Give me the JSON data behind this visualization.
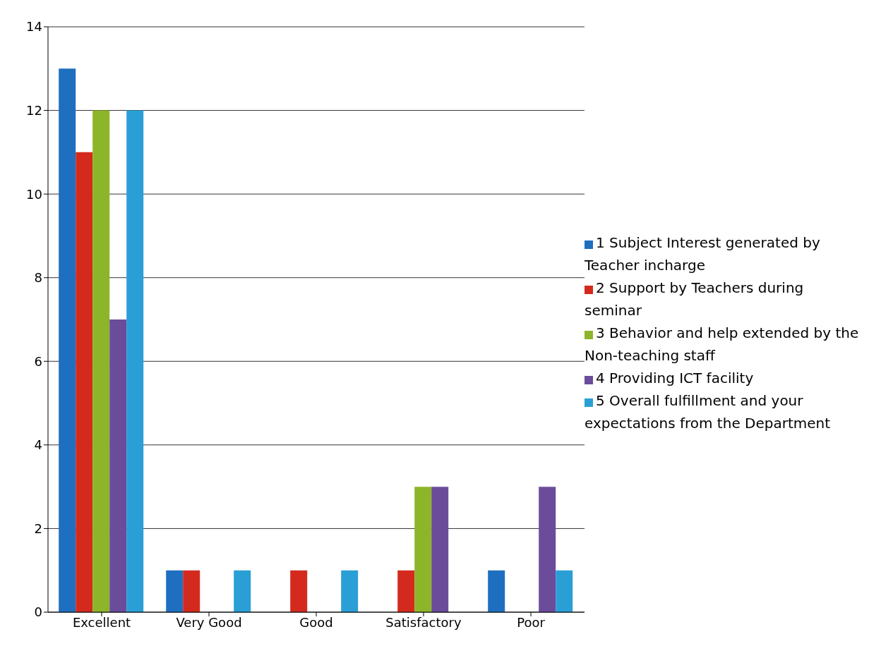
{
  "chart_data": {
    "type": "bar",
    "categories": [
      "Excellent",
      "Very Good",
      "Good",
      "Satisfactory",
      "Poor"
    ],
    "series": [
      {
        "name": "1  Subject Interest generated by Teacher incharge",
        "color": "#1f6fc0",
        "values": [
          13,
          1,
          0,
          0,
          1
        ]
      },
      {
        "name": "2 Support by Teachers during seminar",
        "color": "#d42a1e",
        "values": [
          11,
          1,
          1,
          1,
          0
        ]
      },
      {
        "name": "3 Behavior and help extended by the Non-teaching staff",
        "color": "#8db52a",
        "values": [
          12,
          0,
          0,
          3,
          0
        ]
      },
      {
        "name": "4 Providing ICT facility",
        "color": "#6b4c9a",
        "values": [
          7,
          0,
          0,
          3,
          3
        ]
      },
      {
        "name": "5 Overall fulfillment and your expectations from the Department",
        "color": "#2a9fd6",
        "values": [
          12,
          1,
          1,
          0,
          1
        ]
      }
    ],
    "ylim": [
      0,
      14
    ],
    "yticks": [
      0,
      2,
      4,
      6,
      8,
      10,
      12,
      14
    ],
    "grid": "y",
    "legend": "right"
  }
}
